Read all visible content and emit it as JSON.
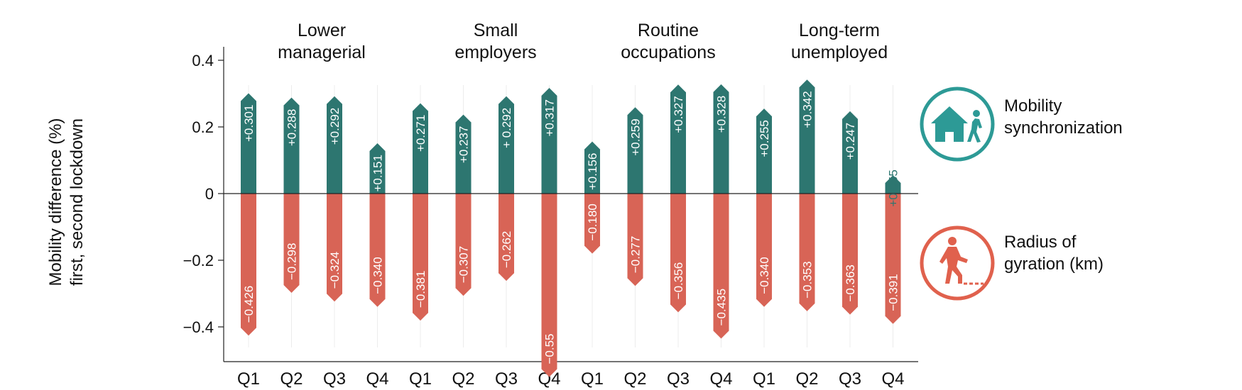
{
  "chart_data": {
    "type": "bar",
    "ylabel": [
      "Mobility difference (%)",
      "first, second lockdown"
    ],
    "ylim": [
      -0.5,
      0.44
    ],
    "yticks": [
      0.4,
      0.2,
      0,
      -0.2,
      -0.4
    ],
    "ytick_labels": [
      "0.4",
      "0.2",
      "0",
      "−0.2",
      "−0.4"
    ],
    "groups": [
      {
        "title": [
          "Lower",
          "managerial"
        ],
        "categories": [
          "Q1",
          "Q2",
          "Q3",
          "Q4"
        ]
      },
      {
        "title": [
          "Small",
          "employers"
        ],
        "categories": [
          "Q1",
          "Q2",
          "Q3",
          "Q4"
        ]
      },
      {
        "title": [
          "Routine",
          "occupations"
        ],
        "categories": [
          "Q1",
          "Q2",
          "Q3",
          "Q4"
        ]
      },
      {
        "title": [
          "Long-term",
          "unemployed"
        ],
        "categories": [
          "Q1",
          "Q2",
          "Q3",
          "Q4"
        ]
      }
    ],
    "series": [
      {
        "name": "Mobility synchronization",
        "color": "#2d7670",
        "values": [
          0.301,
          0.288,
          0.292,
          0.151,
          0.271,
          0.237,
          0.292,
          0.317,
          0.156,
          0.259,
          0.327,
          0.328,
          0.255,
          0.342,
          0.247,
          0.055
        ],
        "labels": [
          "+0.301",
          "+0.288",
          "+0.292",
          "+0.151",
          "+0.271",
          "+0.237",
          "+ 0.292",
          "+0.317",
          "+0.156",
          "+0.259",
          "+0.327",
          "+0.328",
          "+0.255",
          "+0.342",
          "+0.247",
          "+0.055"
        ]
      },
      {
        "name": "Radius of gyration (km)",
        "color": "#d86456",
        "values": [
          -0.426,
          -0.298,
          -0.324,
          -0.34,
          -0.381,
          -0.307,
          -0.262,
          -0.55,
          -0.18,
          -0.277,
          -0.356,
          -0.435,
          -0.34,
          -0.353,
          -0.363,
          -0.391
        ],
        "labels": [
          "−0.426",
          "−0.298",
          "−0.324",
          "−0.340",
          "−0.381",
          "−0.307",
          "−0.262",
          "−0.55",
          "−0.180",
          "−0.277",
          "−0.356",
          "−0.435",
          "−0.340",
          "−0.353",
          "−0.363",
          "−0.391"
        ]
      }
    ],
    "legend": [
      {
        "icon": "house-person-walking-icon",
        "label": [
          "Mobility",
          "synchronization"
        ],
        "color": "#2d9a96"
      },
      {
        "icon": "person-walking-radius-icon",
        "label": [
          "Radius of",
          "gyration (km)"
        ],
        "color": "#e0614d"
      }
    ],
    "grid": false
  }
}
